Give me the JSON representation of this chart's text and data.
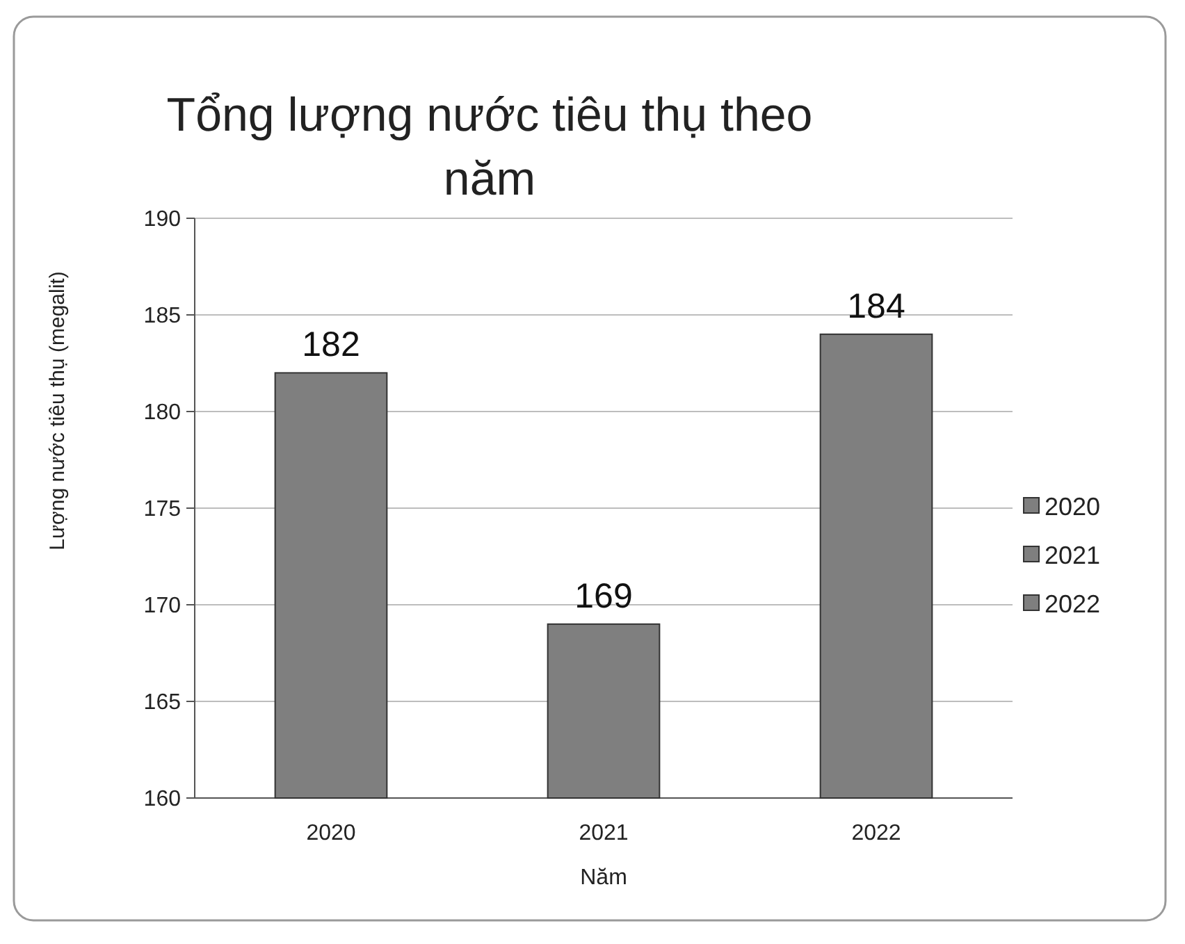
{
  "chart_data": {
    "type": "bar",
    "title": "Tổng lượng nước tiêu thụ theo năm",
    "xlabel": "Năm",
    "ylabel": "Lượng nước tiêu thụ (megalit)",
    "categories": [
      "2020",
      "2021",
      "2022"
    ],
    "series": [
      {
        "name": "2020",
        "color": "#7f7f7f",
        "values": [
          182,
          null,
          null
        ]
      },
      {
        "name": "2021",
        "color": "#7f7f7f",
        "values": [
          null,
          169,
          null
        ]
      },
      {
        "name": "2022",
        "color": "#7f7f7f",
        "values": [
          null,
          null,
          184
        ]
      }
    ],
    "ylim": [
      160,
      190
    ],
    "yticks": [
      160,
      165,
      170,
      175,
      180,
      185,
      190
    ],
    "grid": "y",
    "legend": "right",
    "data_labels": true
  }
}
